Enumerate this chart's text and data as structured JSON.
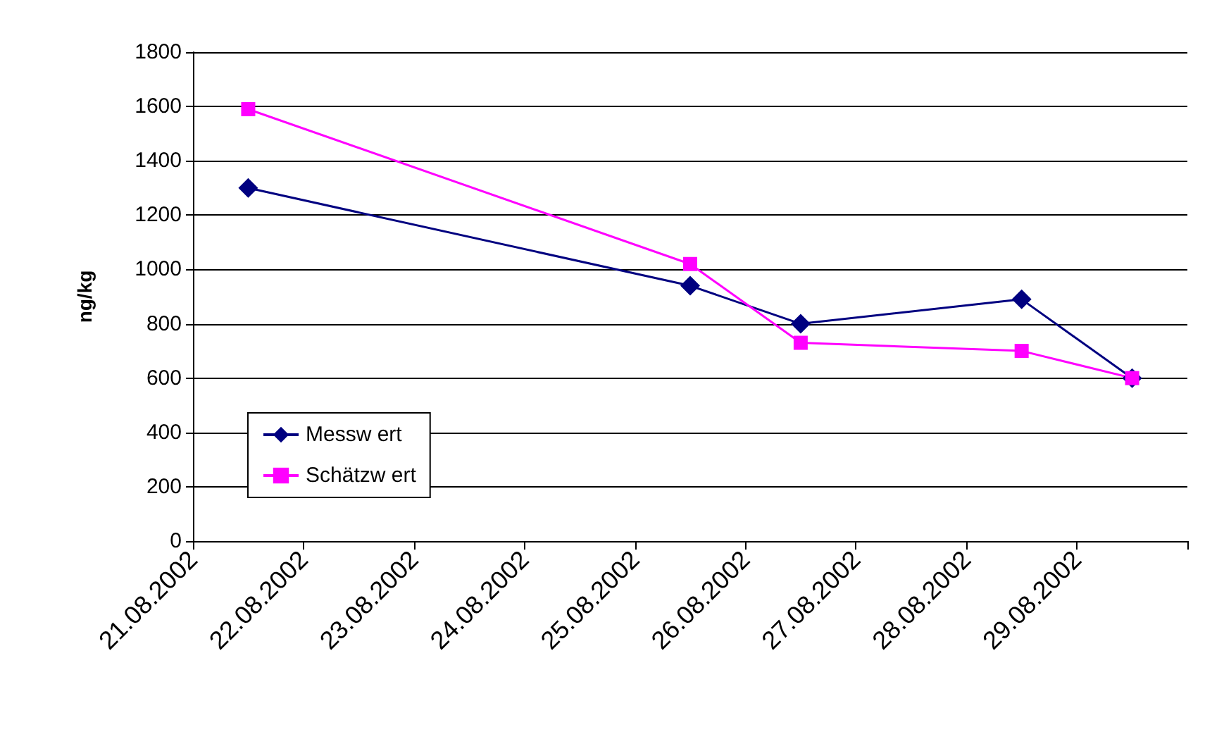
{
  "chart_data": {
    "type": "line",
    "ylabel": "ng/kg",
    "x": [
      "2002-08-21T12:00",
      "2002-08-25T12:00",
      "2002-08-26T12:00",
      "2002-08-28T12:00",
      "2002-08-29T12:00"
    ],
    "series": [
      {
        "name": "Messw ert",
        "color": "#000080",
        "marker": "diamond",
        "values": [
          1300,
          940,
          800,
          890,
          600
        ]
      },
      {
        "name": "Schätzw ert",
        "color": "#ff00ff",
        "marker": "square",
        "values": [
          1590,
          1020,
          730,
          700,
          600
        ]
      }
    ],
    "xlim": [
      "2002-08-21",
      "2002-08-30"
    ],
    "xticks": [
      {
        "value": "2002-08-21",
        "label": "21.08.2002"
      },
      {
        "value": "2002-08-22",
        "label": "22.08.2002"
      },
      {
        "value": "2002-08-23",
        "label": "23.08.2002"
      },
      {
        "value": "2002-08-24",
        "label": "24.08.2002"
      },
      {
        "value": "2002-08-25",
        "label": "25.08.2002"
      },
      {
        "value": "2002-08-26",
        "label": "26.08.2002"
      },
      {
        "value": "2002-08-27",
        "label": "27.08.2002"
      },
      {
        "value": "2002-08-28",
        "label": "28.08.2002"
      },
      {
        "value": "2002-08-29",
        "label": "29.08.2002"
      },
      {
        "value": "2002-08-30",
        "label": null
      }
    ],
    "ylim": [
      0,
      1800
    ],
    "yticks": [
      0,
      200,
      400,
      600,
      800,
      1000,
      1200,
      1400,
      1600,
      1800
    ],
    "grid": "y",
    "legend": "left",
    "line_style": "solid"
  }
}
